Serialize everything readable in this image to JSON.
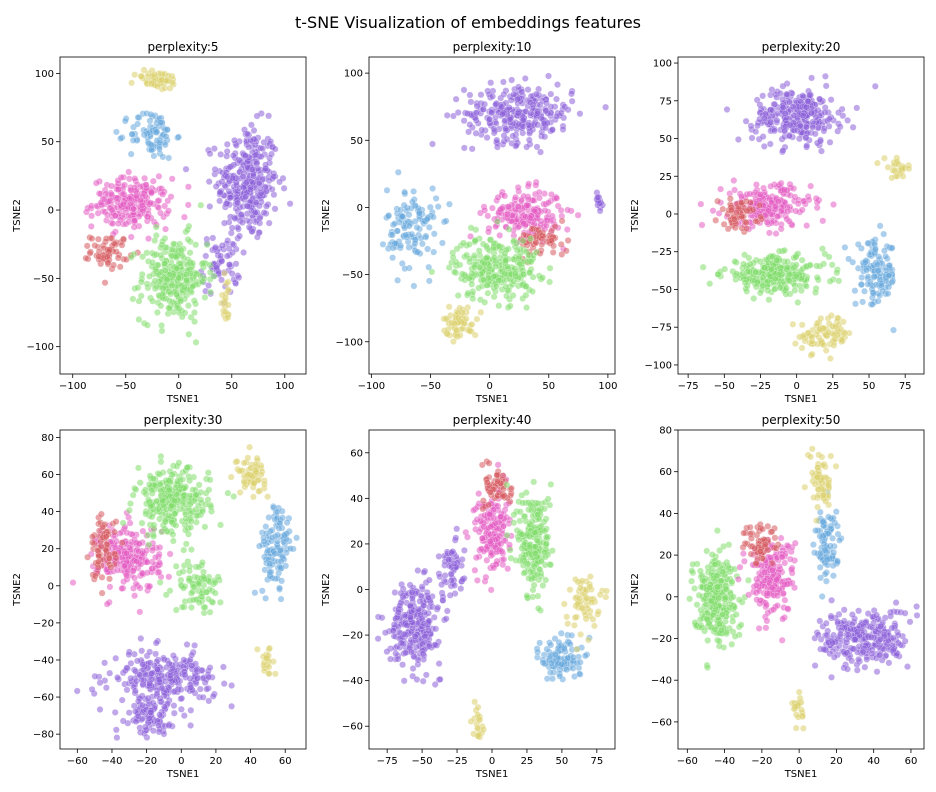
{
  "chart_data": {
    "type": "scatter",
    "title": "t-SNE Visualization of embeddings features",
    "colors": {
      "purple": "#8a5fd8",
      "pink": "#e35bc3",
      "red": "#d6595e",
      "green": "#7fdc6a",
      "yellow": "#dbd06a",
      "blue": "#66a8dc",
      "teal": "#5cc8c0"
    },
    "panels": [
      {
        "title": "perplexity:5",
        "xlabel": "TSNE1",
        "ylabel": "TSNE2",
        "xlim": [
          -112,
          120
        ],
        "ylim": [
          -120,
          112
        ],
        "xticks": [
          -100,
          -50,
          0,
          50,
          100
        ],
        "yticks": [
          -100,
          -50,
          0,
          50,
          100
        ],
        "clusters": [
          {
            "color": "purple",
            "cx": 65,
            "cy": 20,
            "sx": 24,
            "sy": 35,
            "n": 320
          },
          {
            "color": "purple",
            "cx": 40,
            "cy": -40,
            "sx": 15,
            "sy": 18,
            "n": 60
          },
          {
            "color": "pink",
            "cx": -45,
            "cy": 5,
            "sx": 30,
            "sy": 15,
            "n": 220
          },
          {
            "color": "red",
            "cx": -65,
            "cy": -30,
            "sx": 15,
            "sy": 10,
            "n": 60
          },
          {
            "color": "green",
            "cx": -5,
            "cy": -50,
            "sx": 26,
            "sy": 26,
            "n": 260
          },
          {
            "color": "blue",
            "cx": -25,
            "cy": 55,
            "sx": 18,
            "sy": 15,
            "n": 80
          },
          {
            "color": "yellow",
            "cx": -20,
            "cy": 95,
            "sx": 18,
            "sy": 6,
            "n": 50
          },
          {
            "color": "yellow",
            "cx": 45,
            "cy": -65,
            "sx": 5,
            "sy": 15,
            "n": 20
          }
        ]
      },
      {
        "title": "perplexity:10",
        "xlabel": "TSNE1",
        "ylabel": "TSNE2",
        "xlim": [
          -102,
          106
        ],
        "ylim": [
          -124,
          112
        ],
        "xticks": [
          -100,
          -50,
          0,
          50,
          100
        ],
        "yticks": [
          -100,
          -50,
          0,
          50,
          100
        ],
        "clusters": [
          {
            "color": "purple",
            "cx": 25,
            "cy": 70,
            "sx": 38,
            "sy": 18,
            "n": 280
          },
          {
            "color": "pink",
            "cx": 30,
            "cy": -5,
            "sx": 26,
            "sy": 15,
            "n": 200
          },
          {
            "color": "red",
            "cx": 45,
            "cy": -25,
            "sx": 18,
            "sy": 10,
            "n": 60
          },
          {
            "color": "green",
            "cx": 5,
            "cy": -45,
            "sx": 30,
            "sy": 20,
            "n": 260
          },
          {
            "color": "blue",
            "cx": -65,
            "cy": -15,
            "sx": 18,
            "sy": 25,
            "n": 120
          },
          {
            "color": "yellow",
            "cx": -25,
            "cy": -85,
            "sx": 12,
            "sy": 10,
            "n": 60
          },
          {
            "color": "purple",
            "cx": 92,
            "cy": 5,
            "sx": 3,
            "sy": 8,
            "n": 15
          }
        ]
      },
      {
        "title": "perplexity:20",
        "xlabel": "TSNE1",
        "ylabel": "TSNE2",
        "xlim": [
          -82,
          88
        ],
        "ylim": [
          -106,
          104
        ],
        "xticks": [
          -75,
          -50,
          -25,
          0,
          25,
          50,
          75
        ],
        "yticks": [
          -100,
          -75,
          -50,
          -25,
          0,
          25,
          50,
          75,
          100
        ],
        "clusters": [
          {
            "color": "purple",
            "cx": 0,
            "cy": 65,
            "sx": 25,
            "sy": 15,
            "n": 280
          },
          {
            "color": "pink",
            "cx": -20,
            "cy": 5,
            "sx": 25,
            "sy": 12,
            "n": 220
          },
          {
            "color": "red",
            "cx": -40,
            "cy": 0,
            "sx": 12,
            "sy": 8,
            "n": 60
          },
          {
            "color": "green",
            "cx": -15,
            "cy": -40,
            "sx": 30,
            "sy": 10,
            "n": 260
          },
          {
            "color": "blue",
            "cx": 55,
            "cy": -40,
            "sx": 12,
            "sy": 18,
            "n": 120
          },
          {
            "color": "yellow",
            "cx": 20,
            "cy": -80,
            "sx": 15,
            "sy": 10,
            "n": 80
          },
          {
            "color": "yellow",
            "cx": 70,
            "cy": 30,
            "sx": 8,
            "sy": 5,
            "n": 25
          }
        ]
      },
      {
        "title": "perplexity:30",
        "xlabel": "TSNE1",
        "ylabel": "TSNE2",
        "xlim": [
          -70,
          72
        ],
        "ylim": [
          -88,
          84
        ],
        "xticks": [
          -60,
          -40,
          -20,
          0,
          20,
          40,
          60
        ],
        "yticks": [
          -80,
          -60,
          -40,
          -20,
          0,
          20,
          40,
          60,
          80
        ],
        "clusters": [
          {
            "color": "purple",
            "cx": -10,
            "cy": -50,
            "sx": 25,
            "sy": 12,
            "n": 260
          },
          {
            "color": "purple",
            "cx": -20,
            "cy": -70,
            "sx": 12,
            "sy": 8,
            "n": 80
          },
          {
            "color": "pink",
            "cx": -30,
            "cy": 15,
            "sx": 15,
            "sy": 15,
            "n": 220
          },
          {
            "color": "red",
            "cx": -45,
            "cy": 20,
            "sx": 6,
            "sy": 15,
            "n": 70
          },
          {
            "color": "green",
            "cx": -5,
            "cy": 45,
            "sx": 18,
            "sy": 15,
            "n": 260
          },
          {
            "color": "green",
            "cx": 10,
            "cy": 0,
            "sx": 12,
            "sy": 12,
            "n": 80
          },
          {
            "color": "blue",
            "cx": 55,
            "cy": 20,
            "sx": 8,
            "sy": 20,
            "n": 110
          },
          {
            "color": "yellow",
            "cx": 40,
            "cy": 60,
            "sx": 7,
            "sy": 8,
            "n": 60
          },
          {
            "color": "yellow",
            "cx": 50,
            "cy": -40,
            "sx": 4,
            "sy": 6,
            "n": 20
          }
        ]
      },
      {
        "title": "perplexity:40",
        "xlabel": "TSNE1",
        "ylabel": "TSNE2",
        "xlim": [
          -88,
          88
        ],
        "ylim": [
          -70,
          70
        ],
        "xticks": [
          -75,
          -50,
          -25,
          0,
          25,
          50,
          75
        ],
        "yticks": [
          -60,
          -40,
          -20,
          0,
          20,
          40,
          60
        ],
        "clusters": [
          {
            "color": "purple",
            "cx": -55,
            "cy": -15,
            "sx": 15,
            "sy": 15,
            "n": 260
          },
          {
            "color": "purple",
            "cx": -30,
            "cy": 10,
            "sx": 8,
            "sy": 12,
            "n": 60
          },
          {
            "color": "pink",
            "cx": 0,
            "cy": 25,
            "sx": 10,
            "sy": 15,
            "n": 180
          },
          {
            "color": "red",
            "cx": 5,
            "cy": 45,
            "sx": 8,
            "sy": 8,
            "n": 60
          },
          {
            "color": "green",
            "cx": 30,
            "cy": 20,
            "sx": 10,
            "sy": 20,
            "n": 220
          },
          {
            "color": "blue",
            "cx": 50,
            "cy": -30,
            "sx": 12,
            "sy": 8,
            "n": 100
          },
          {
            "color": "yellow",
            "cx": 65,
            "cy": -5,
            "sx": 10,
            "sy": 10,
            "n": 60
          },
          {
            "color": "yellow",
            "cx": -10,
            "cy": -58,
            "sx": 3,
            "sy": 6,
            "n": 20
          }
        ]
      },
      {
        "title": "perplexity:50",
        "xlabel": "TSNE1",
        "ylabel": "TSNE2",
        "xlim": [
          -65,
          67
        ],
        "ylim": [
          -73,
          80
        ],
        "xticks": [
          -60,
          -40,
          -20,
          0,
          20,
          40,
          60
        ],
        "yticks": [
          -60,
          -40,
          -20,
          0,
          20,
          40,
          60,
          80
        ],
        "clusters": [
          {
            "color": "green",
            "cx": -45,
            "cy": 0,
            "sx": 10,
            "sy": 18,
            "n": 260
          },
          {
            "color": "pink",
            "cx": -15,
            "cy": 10,
            "sx": 10,
            "sy": 15,
            "n": 200
          },
          {
            "color": "red",
            "cx": -20,
            "cy": 25,
            "sx": 8,
            "sy": 8,
            "n": 60
          },
          {
            "color": "purple",
            "cx": 35,
            "cy": -20,
            "sx": 20,
            "sy": 12,
            "n": 260
          },
          {
            "color": "blue",
            "cx": 15,
            "cy": 25,
            "sx": 6,
            "sy": 15,
            "n": 90
          },
          {
            "color": "yellow",
            "cx": 12,
            "cy": 55,
            "sx": 5,
            "sy": 12,
            "n": 60
          },
          {
            "color": "yellow",
            "cx": 0,
            "cy": -55,
            "sx": 3,
            "sy": 6,
            "n": 20
          }
        ]
      }
    ]
  }
}
